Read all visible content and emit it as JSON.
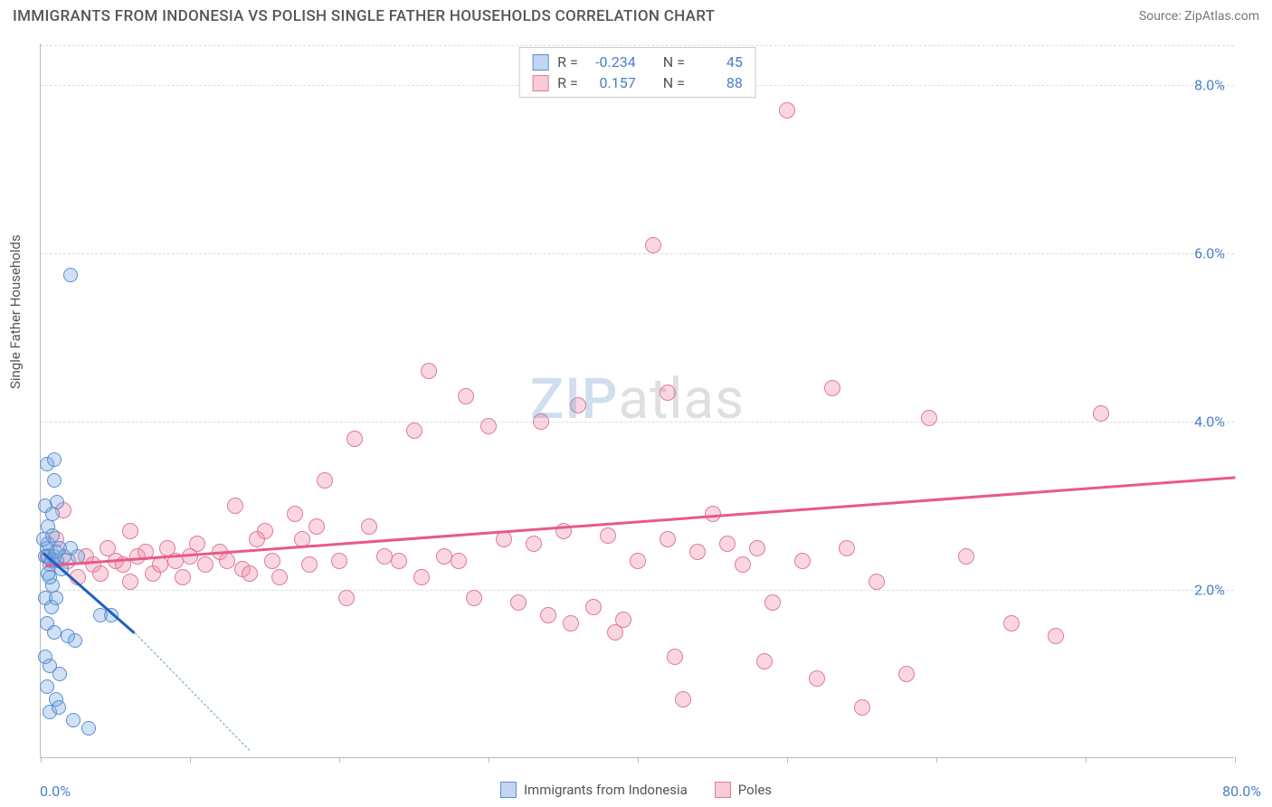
{
  "title": "IMMIGRANTS FROM INDONESIA VS POLISH SINGLE FATHER HOUSEHOLDS CORRELATION CHART",
  "source_label": "Source:",
  "source_value": "ZipAtlas.com",
  "y_axis_label": "Single Father Households",
  "x_min_label": "0.0%",
  "x_max_label": "80.0%",
  "y_ticks": [
    {
      "value": 2.0,
      "label": "2.0%"
    },
    {
      "value": 4.0,
      "label": "4.0%"
    },
    {
      "value": 6.0,
      "label": "6.0%"
    },
    {
      "value": 8.0,
      "label": "8.0%"
    }
  ],
  "x_ticks": [
    0,
    10,
    20,
    30,
    40,
    50,
    60,
    70,
    80
  ],
  "xlim": [
    0,
    80
  ],
  "ylim": [
    0,
    8.5
  ],
  "background_color": "#ffffff",
  "grid_color": "#dddddd",
  "watermark": {
    "part1": "ZIP",
    "part2": "atlas"
  },
  "series": {
    "blue": {
      "label": "Immigrants from Indonesia",
      "fill": "rgba(120,165,225,0.35)",
      "stroke": "#5a8fd0",
      "marker_radius": 8,
      "R_label": "R =",
      "R_value": "-0.234",
      "N_label": "N =",
      "N_value": "45",
      "trend": {
        "x1": 0.2,
        "y1": 2.45,
        "x2": 6.3,
        "y2": 1.5,
        "color": "#1f5fbf"
      },
      "trend_dash": {
        "x1": 6.3,
        "y1": 1.5,
        "x2": 14,
        "y2": 0.1,
        "color": "#6a9fd8"
      },
      "points": [
        [
          0.3,
          2.4
        ],
        [
          0.5,
          2.4
        ],
        [
          0.7,
          2.35
        ],
        [
          0.4,
          2.5
        ],
        [
          0.6,
          2.3
        ],
        [
          0.9,
          2.4
        ],
        [
          1.1,
          2.35
        ],
        [
          0.5,
          2.2
        ],
        [
          0.8,
          2.05
        ],
        [
          0.3,
          1.9
        ],
        [
          0.7,
          1.8
        ],
        [
          1.0,
          1.9
        ],
        [
          0.4,
          1.6
        ],
        [
          0.9,
          1.5
        ],
        [
          1.8,
          1.45
        ],
        [
          2.3,
          1.4
        ],
        [
          4.0,
          1.7
        ],
        [
          4.7,
          1.7
        ],
        [
          0.3,
          1.2
        ],
        [
          0.6,
          1.1
        ],
        [
          1.3,
          1.0
        ],
        [
          0.4,
          0.85
        ],
        [
          1.0,
          0.7
        ],
        [
          0.6,
          0.55
        ],
        [
          1.2,
          0.6
        ],
        [
          2.2,
          0.45
        ],
        [
          3.2,
          0.35
        ],
        [
          0.5,
          2.75
        ],
        [
          0.3,
          3.0
        ],
        [
          0.8,
          2.9
        ],
        [
          1.1,
          3.05
        ],
        [
          0.9,
          3.3
        ],
        [
          0.4,
          3.5
        ],
        [
          0.9,
          3.55
        ],
        [
          0.5,
          2.55
        ],
        [
          0.8,
          2.65
        ],
        [
          1.3,
          2.5
        ],
        [
          1.6,
          2.4
        ],
        [
          2.0,
          2.5
        ],
        [
          2.5,
          2.4
        ],
        [
          2.0,
          5.75
        ],
        [
          0.6,
          2.15
        ],
        [
          1.4,
          2.25
        ],
        [
          0.2,
          2.6
        ],
        [
          1.0,
          2.45
        ]
      ]
    },
    "pink": {
      "label": "Poles",
      "fill": "rgba(240,140,165,0.35)",
      "stroke": "#e07a98",
      "marker_radius": 9,
      "R_label": "R =",
      "R_value": "0.157",
      "N_label": "N =",
      "N_value": "88",
      "trend": {
        "x1": 0.3,
        "y1": 2.3,
        "x2": 80,
        "y2": 3.35,
        "color": "#e85a88"
      },
      "points": [
        [
          0.5,
          2.4
        ],
        [
          1.5,
          2.95
        ],
        [
          1.8,
          2.35
        ],
        [
          1.0,
          2.6
        ],
        [
          2.5,
          2.15
        ],
        [
          3.0,
          2.4
        ],
        [
          3.5,
          2.3
        ],
        [
          4.0,
          2.2
        ],
        [
          4.5,
          2.5
        ],
        [
          5.0,
          2.35
        ],
        [
          5.5,
          2.3
        ],
        [
          6.0,
          2.1
        ],
        [
          6.5,
          2.4
        ],
        [
          7.0,
          2.45
        ],
        [
          7.5,
          2.2
        ],
        [
          8.0,
          2.3
        ],
        [
          8.5,
          2.5
        ],
        [
          9.0,
          2.35
        ],
        [
          9.5,
          2.15
        ],
        [
          10.0,
          2.4
        ],
        [
          10.5,
          2.55
        ],
        [
          11.0,
          2.3
        ],
        [
          12.0,
          2.45
        ],
        [
          12.5,
          2.35
        ],
        [
          13.0,
          3.0
        ],
        [
          13.5,
          2.25
        ],
        [
          14.0,
          2.2
        ],
        [
          15.0,
          2.7
        ],
        [
          15.5,
          2.35
        ],
        [
          16.0,
          2.15
        ],
        [
          17.0,
          2.9
        ],
        [
          17.5,
          2.6
        ],
        [
          18.0,
          2.3
        ],
        [
          19.0,
          3.3
        ],
        [
          20.0,
          2.35
        ],
        [
          20.5,
          1.9
        ],
        [
          21.0,
          3.8
        ],
        [
          22.0,
          2.75
        ],
        [
          23.0,
          2.4
        ],
        [
          24.0,
          2.35
        ],
        [
          25.0,
          3.9
        ],
        [
          25.5,
          2.15
        ],
        [
          26.0,
          4.6
        ],
        [
          27.0,
          2.4
        ],
        [
          28.0,
          2.35
        ],
        [
          28.5,
          4.3
        ],
        [
          29.0,
          1.9
        ],
        [
          30.0,
          3.95
        ],
        [
          31.0,
          2.6
        ],
        [
          32.0,
          1.85
        ],
        [
          33.0,
          2.55
        ],
        [
          33.5,
          4.0
        ],
        [
          34.0,
          1.7
        ],
        [
          35.0,
          2.7
        ],
        [
          35.5,
          1.6
        ],
        [
          36.0,
          4.2
        ],
        [
          37.0,
          1.8
        ],
        [
          38.0,
          2.65
        ],
        [
          38.5,
          1.5
        ],
        [
          39.0,
          1.65
        ],
        [
          40.0,
          2.35
        ],
        [
          41.0,
          6.1
        ],
        [
          42.0,
          2.6
        ],
        [
          43.0,
          0.7
        ],
        [
          42.5,
          1.2
        ],
        [
          44.0,
          2.45
        ],
        [
          45.0,
          2.9
        ],
        [
          46.0,
          2.55
        ],
        [
          47.0,
          2.3
        ],
        [
          48.0,
          2.5
        ],
        [
          48.5,
          1.15
        ],
        [
          49.0,
          1.85
        ],
        [
          50.0,
          7.7
        ],
        [
          51.0,
          2.35
        ],
        [
          52.0,
          0.95
        ],
        [
          53.0,
          4.4
        ],
        [
          54.0,
          2.5
        ],
        [
          55.0,
          0.6
        ],
        [
          56.0,
          2.1
        ],
        [
          58.0,
          1.0
        ],
        [
          59.5,
          4.05
        ],
        [
          62.0,
          2.4
        ],
        [
          65.0,
          1.6
        ],
        [
          68.0,
          1.45
        ],
        [
          71.0,
          4.1
        ],
        [
          42.0,
          4.35
        ],
        [
          18.5,
          2.75
        ],
        [
          14.5,
          2.6
        ],
        [
          6.0,
          2.7
        ]
      ]
    }
  },
  "legend_swatches": {
    "blue": {
      "fill": "rgba(120,165,225,0.45)",
      "border": "#5a8fd0"
    },
    "pink": {
      "fill": "rgba(240,140,165,0.45)",
      "border": "#e07a98"
    }
  }
}
